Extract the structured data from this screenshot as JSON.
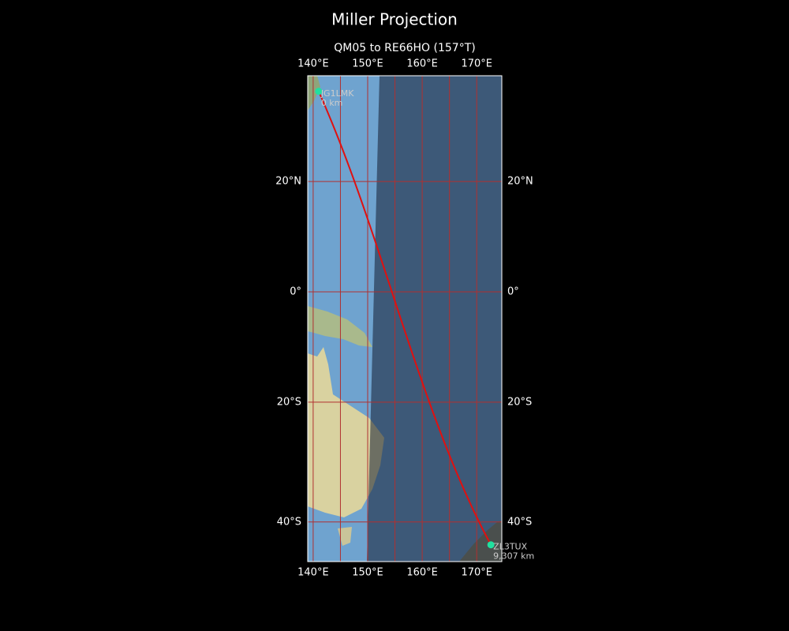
{
  "title": "Miller Projection",
  "subtitle": "QM05 to RE66HO (157°T)",
  "map": {
    "projection": "miller",
    "xlim": [
      139,
      174.6
    ],
    "ylim": [
      -46,
      37.8
    ],
    "xticks": [
      {
        "value": 140,
        "label": "140°E"
      },
      {
        "value": 150,
        "label": "150°E"
      },
      {
        "value": 160,
        "label": "160°E"
      },
      {
        "value": 170,
        "label": "170°E"
      }
    ],
    "yticks": [
      {
        "value": 20,
        "label": "20°N"
      },
      {
        "value": 0,
        "label": "0°"
      },
      {
        "value": -20,
        "label": "20°S"
      },
      {
        "value": -40,
        "label": "40°S"
      }
    ],
    "grid_lons": [
      140,
      145,
      150,
      155,
      160,
      165,
      170
    ],
    "grid_color": "#b03030",
    "path_color": "#e01010",
    "station_color": "#20e0a0",
    "stations": [
      {
        "name": "JG1LMK",
        "lon": 141.0,
        "lat": 35.3,
        "distance": "0 km"
      },
      {
        "name": "ZL3TUX",
        "lon": 172.6,
        "lat": -43.5,
        "distance": "9,307 km"
      }
    ]
  }
}
